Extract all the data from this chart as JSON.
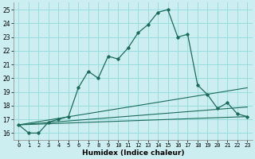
{
  "xlabel": "Humidex (Indice chaleur)",
  "background_color": "#cceef0",
  "grid_color": "#99dddd",
  "line_color": "#1a6b5a",
  "xlim": [
    -0.5,
    23.5
  ],
  "ylim": [
    15.5,
    25.5
  ],
  "xtick_positions": [
    0,
    1,
    2,
    3,
    4,
    5,
    6,
    7,
    8,
    9,
    10,
    11,
    12,
    13,
    14,
    15,
    16,
    17,
    18,
    19,
    20,
    21,
    22,
    23
  ],
  "ytick_positions": [
    16,
    17,
    18,
    19,
    20,
    21,
    22,
    23,
    24,
    25
  ],
  "main_line_x": [
    0,
    1,
    2,
    3,
    4,
    5,
    6,
    7,
    8,
    9,
    10,
    11,
    12,
    13,
    14,
    15,
    16,
    17,
    18,
    19,
    20,
    21,
    22,
    23
  ],
  "main_line_y": [
    16.6,
    16.0,
    16.0,
    16.8,
    17.0,
    17.2,
    19.3,
    20.5,
    20.0,
    21.6,
    21.4,
    22.2,
    23.3,
    23.9,
    24.8,
    25.0,
    23.0,
    23.2,
    19.5,
    18.8,
    17.8,
    18.2,
    17.4,
    17.2
  ],
  "ref_lines": [
    {
      "x": [
        0,
        23
      ],
      "y": [
        16.6,
        17.2
      ]
    },
    {
      "x": [
        0,
        23
      ],
      "y": [
        16.6,
        17.9
      ]
    },
    {
      "x": [
        0,
        23
      ],
      "y": [
        16.6,
        19.3
      ]
    }
  ]
}
